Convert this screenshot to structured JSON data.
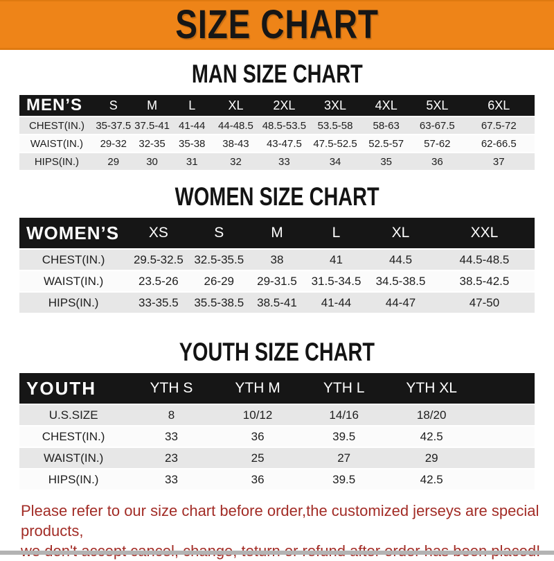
{
  "banner": {
    "title": "SIZE CHART",
    "bg_color": "#EE8418"
  },
  "sections": [
    {
      "title": "MAN SIZE CHART",
      "header_label": "MEN’S",
      "columns": [
        "S",
        "M",
        "L",
        "XL",
        "2XL",
        "3XL",
        "4XL",
        "5XL",
        "6XL"
      ],
      "rows": [
        {
          "label": "CHEST(IN.)",
          "values": [
            "35-37.5",
            "37.5-41",
            "41-44",
            "44-48.5",
            "48.5-53.5",
            "53.5-58",
            "58-63",
            "63-67.5",
            "67.5-72"
          ]
        },
        {
          "label": "WAIST(IN.)",
          "values": [
            "29-32",
            "32-35",
            "35-38",
            "38-43",
            "43-47.5",
            "47.5-52.5",
            "52.5-57",
            "57-62",
            "62-66.5"
          ]
        },
        {
          "label": "HIPS(IN.)",
          "values": [
            "29",
            "30",
            "31",
            "32",
            "33",
            "34",
            "35",
            "36",
            "37"
          ]
        }
      ]
    },
    {
      "title": "WOMEN SIZE CHART",
      "header_label": "WOMEN’S",
      "columns": [
        "XS",
        "S",
        "M",
        "L",
        "XL",
        "XXL"
      ],
      "rows": [
        {
          "label": "CHEST(IN.)",
          "values": [
            "29.5-32.5",
            "32.5-35.5",
            "38",
            "41",
            "44.5",
            "44.5-48.5"
          ]
        },
        {
          "label": "WAIST(IN.)",
          "values": [
            "23.5-26",
            "26-29",
            "29-31.5",
            "31.5-34.5",
            "34.5-38.5",
            "38.5-42.5"
          ]
        },
        {
          "label": "HIPS(IN.)",
          "values": [
            "33-35.5",
            "35.5-38.5",
            "38.5-41",
            "41-44",
            "44-47",
            "47-50"
          ]
        }
      ]
    },
    {
      "title": "YOUTH SIZE CHART",
      "header_label": "YOUTH",
      "columns": [
        "YTH S",
        "YTH M",
        "YTH L",
        "YTH XL"
      ],
      "rows": [
        {
          "label": "U.S.SIZE",
          "values": [
            "8",
            "10/12",
            "14/16",
            "18/20"
          ]
        },
        {
          "label": "CHEST(IN.)",
          "values": [
            "33",
            "36",
            "39.5",
            "42.5"
          ]
        },
        {
          "label": "WAIST(IN.)",
          "values": [
            "23",
            "25",
            "27",
            "29"
          ]
        },
        {
          "label": "HIPS(IN.)",
          "values": [
            "33",
            "36",
            "39.5",
            "42.5"
          ]
        }
      ]
    }
  ],
  "footer": {
    "line1": "Please refer to our size chart before order,the customized jerseys are special products,",
    "line2": "we don't accept cancel, change, teturn or refund after order has been placed!",
    "text_color": "#A22C26"
  }
}
